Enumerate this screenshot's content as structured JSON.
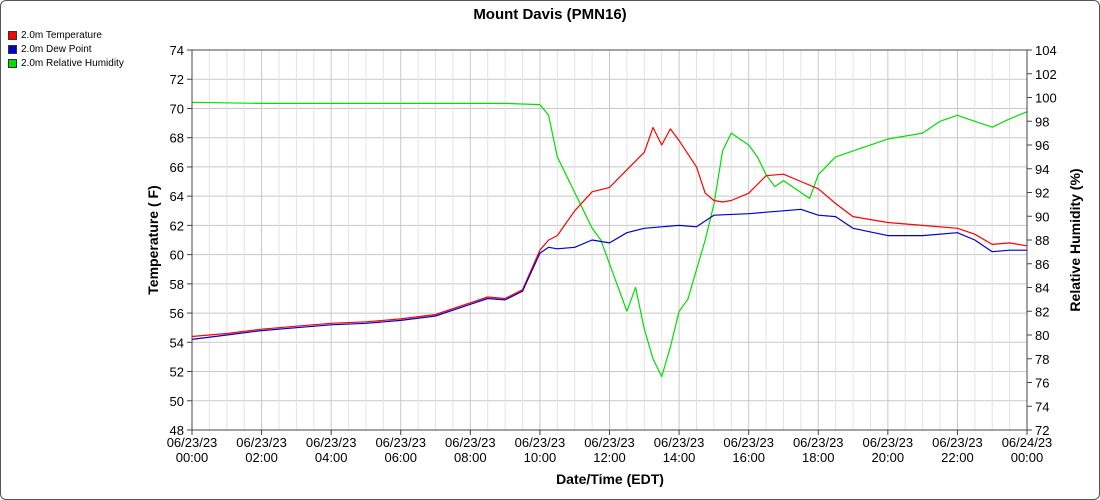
{
  "chart_data": {
    "type": "line",
    "title": "Mount Davis (PMN16)",
    "xlabel": "Date/Time (EDT)",
    "ylabel": "Temperature ( F)",
    "y2label": "Relative Humidity (%)",
    "x_ticks": [
      [
        "06/23/23",
        "00:00"
      ],
      [
        "06/23/23",
        "02:00"
      ],
      [
        "06/23/23",
        "04:00"
      ],
      [
        "06/23/23",
        "06:00"
      ],
      [
        "06/23/23",
        "08:00"
      ],
      [
        "06/23/23",
        "10:00"
      ],
      [
        "06/23/23",
        "12:00"
      ],
      [
        "06/23/23",
        "14:00"
      ],
      [
        "06/23/23",
        "16:00"
      ],
      [
        "06/23/23",
        "18:00"
      ],
      [
        "06/23/23",
        "20:00"
      ],
      [
        "06/23/23",
        "22:00"
      ],
      [
        "06/24/23",
        "00:00"
      ]
    ],
    "xlim": [
      "06/23/23 00:00",
      "06/24/23 00:00"
    ],
    "ylim": [
      48,
      74
    ],
    "y_ticks": [
      48,
      50,
      52,
      54,
      56,
      58,
      60,
      62,
      64,
      66,
      68,
      70,
      72,
      74
    ],
    "y2lim": [
      72,
      104
    ],
    "y2_ticks": [
      72,
      74,
      76,
      78,
      80,
      82,
      84,
      86,
      88,
      90,
      92,
      94,
      96,
      98,
      100,
      102,
      104
    ],
    "grid": true,
    "legend_position": "top-left",
    "series": [
      {
        "name": "2.0m Temperature",
        "color": "#ff0000",
        "axis": "left",
        "x": [
          "06/23/23 00:00",
          "06/23/23 01:00",
          "06/23/23 02:00",
          "06/23/23 03:00",
          "06/23/23 04:00",
          "06/23/23 05:00",
          "06/23/23 06:00",
          "06/23/23 07:00",
          "06/23/23 08:00",
          "06/23/23 08:30",
          "06/23/23 09:00",
          "06/23/23 09:30",
          "06/23/23 10:00",
          "06/23/23 10:15",
          "06/23/23 10:30",
          "06/23/23 11:00",
          "06/23/23 11:30",
          "06/23/23 12:00",
          "06/23/23 12:30",
          "06/23/23 13:00",
          "06/23/23 13:15",
          "06/23/23 13:30",
          "06/23/23 13:45",
          "06/23/23 14:00",
          "06/23/23 14:30",
          "06/23/23 14:45",
          "06/23/23 15:00",
          "06/23/23 15:15",
          "06/23/23 15:30",
          "06/23/23 16:00",
          "06/23/23 16:30",
          "06/23/23 17:00",
          "06/23/23 17:30",
          "06/23/23 18:00",
          "06/23/23 18:30",
          "06/23/23 19:00",
          "06/23/23 20:00",
          "06/23/23 21:00",
          "06/23/23 22:00",
          "06/23/23 22:30",
          "06/23/23 23:00",
          "06/23/23 23:30",
          "06/24/23 00:00"
        ],
        "values": [
          54.4,
          54.6,
          54.9,
          55.1,
          55.3,
          55.4,
          55.6,
          55.9,
          56.7,
          57.1,
          57.0,
          57.6,
          60.3,
          61.0,
          61.3,
          63.0,
          64.3,
          64.6,
          65.8,
          67.0,
          68.7,
          67.5,
          68.6,
          67.8,
          66.0,
          64.2,
          63.7,
          63.6,
          63.7,
          64.2,
          65.4,
          65.5,
          65.0,
          64.5,
          63.5,
          62.6,
          62.2,
          62.0,
          61.8,
          61.4,
          60.7,
          60.8,
          60.6
        ]
      },
      {
        "name": "2.0m Dew Point",
        "color": "#0000cc",
        "axis": "left",
        "x": [
          "06/23/23 00:00",
          "06/23/23 01:00",
          "06/23/23 02:00",
          "06/23/23 03:00",
          "06/23/23 04:00",
          "06/23/23 05:00",
          "06/23/23 06:00",
          "06/23/23 07:00",
          "06/23/23 08:00",
          "06/23/23 08:30",
          "06/23/23 09:00",
          "06/23/23 09:30",
          "06/23/23 10:00",
          "06/23/23 10:15",
          "06/23/23 10:30",
          "06/23/23 11:00",
          "06/23/23 11:30",
          "06/23/23 12:00",
          "06/23/23 12:30",
          "06/23/23 13:00",
          "06/23/23 13:30",
          "06/23/23 14:00",
          "06/23/23 14:30",
          "06/23/23 15:00",
          "06/23/23 16:00",
          "06/23/23 16:30",
          "06/23/23 17:00",
          "06/23/23 17:30",
          "06/23/23 18:00",
          "06/23/23 18:30",
          "06/23/23 19:00",
          "06/23/23 20:00",
          "06/23/23 21:00",
          "06/23/23 22:00",
          "06/23/23 22:30",
          "06/23/23 23:00",
          "06/23/23 23:30",
          "06/24/23 00:00"
        ],
        "values": [
          54.2,
          54.5,
          54.8,
          55.0,
          55.2,
          55.3,
          55.5,
          55.8,
          56.6,
          57.0,
          56.9,
          57.5,
          60.1,
          60.5,
          60.4,
          60.5,
          61.0,
          60.8,
          61.5,
          61.8,
          61.9,
          62.0,
          61.9,
          62.7,
          62.8,
          62.9,
          63.0,
          63.1,
          62.7,
          62.6,
          61.8,
          61.3,
          61.3,
          61.5,
          61.0,
          60.2,
          60.3,
          60.3
        ]
      },
      {
        "name": "2.0m Relative Humidity",
        "color": "#00e000",
        "axis": "right",
        "x": [
          "06/23/23 00:00",
          "06/23/23 02:00",
          "06/23/23 04:00",
          "06/23/23 06:00",
          "06/23/23 08:00",
          "06/23/23 09:00",
          "06/23/23 10:00",
          "06/23/23 10:15",
          "06/23/23 10:30",
          "06/23/23 10:45",
          "06/23/23 11:00",
          "06/23/23 11:15",
          "06/23/23 11:30",
          "06/23/23 11:45",
          "06/23/23 12:00",
          "06/23/23 12:15",
          "06/23/23 12:30",
          "06/23/23 12:45",
          "06/23/23 13:00",
          "06/23/23 13:15",
          "06/23/23 13:30",
          "06/23/23 13:45",
          "06/23/23 14:00",
          "06/23/23 14:15",
          "06/23/23 14:30",
          "06/23/23 14:45",
          "06/23/23 15:00",
          "06/23/23 15:15",
          "06/23/23 15:30",
          "06/23/23 15:45",
          "06/23/23 16:00",
          "06/23/23 16:15",
          "06/23/23 16:30",
          "06/23/23 16:45",
          "06/23/23 17:00",
          "06/23/23 17:30",
          "06/23/23 17:45",
          "06/23/23 18:00",
          "06/23/23 18:30",
          "06/23/23 19:00",
          "06/23/23 20:00",
          "06/23/23 21:00",
          "06/23/23 21:30",
          "06/23/23 22:00",
          "06/23/23 22:30",
          "06/23/23 23:00",
          "06/23/23 23:30",
          "06/24/23 00:00"
        ],
        "values": [
          99.6,
          99.5,
          99.5,
          99.5,
          99.5,
          99.5,
          99.4,
          98.5,
          95.0,
          93.5,
          92.0,
          90.5,
          89.0,
          88.0,
          86.0,
          84.0,
          82.0,
          84.0,
          80.5,
          78.0,
          76.5,
          79.0,
          82.0,
          83.0,
          85.5,
          88.0,
          91.0,
          95.5,
          97.0,
          96.5,
          96.0,
          95.0,
          93.5,
          92.5,
          93.0,
          92.0,
          91.5,
          93.5,
          95.0,
          95.5,
          96.5,
          97.0,
          98.0,
          98.5,
          98.0,
          97.5,
          98.2,
          98.8
        ]
      }
    ]
  }
}
